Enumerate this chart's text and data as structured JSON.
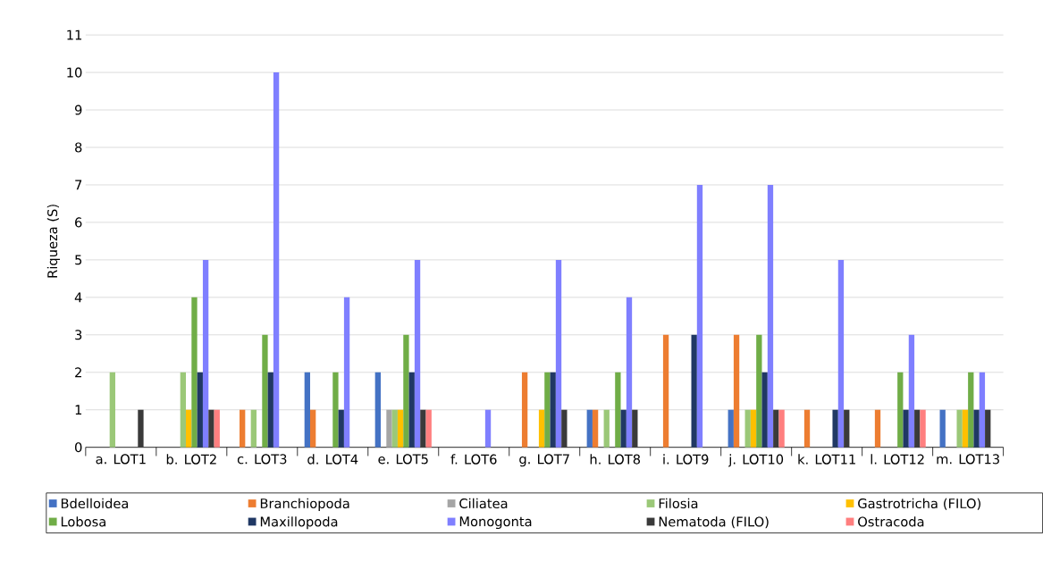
{
  "chart_data": {
    "type": "bar",
    "ylabel": "Riqueza (S)",
    "categories": [
      "a. LOT1",
      "b. LOT2",
      "c. LOT3",
      "d. LOT4",
      "e. LOT5",
      "f. LOT6",
      "g. LOT7",
      "h. LOT8",
      "i. LOT9",
      "j. LOT10",
      "k. LOT11",
      "l. LOT12",
      "m. LOT13"
    ],
    "series": [
      {
        "name": "Bdelloidea",
        "color": "#4472c4",
        "values": [
          0,
          0,
          0,
          2,
          2,
          0,
          0,
          1,
          0,
          1,
          0,
          0,
          1
        ]
      },
      {
        "name": "Branchiopoda",
        "color": "#ed7d31",
        "values": [
          0,
          0,
          1,
          1,
          0,
          0,
          2,
          1,
          3,
          3,
          1,
          1,
          0
        ]
      },
      {
        "name": "Ciliatea",
        "color": "#a5a5a5",
        "values": [
          0,
          0,
          0,
          0,
          1,
          0,
          0,
          0,
          0,
          0,
          0,
          0,
          0
        ]
      },
      {
        "name": "Filosia",
        "color": "#9bc878",
        "values": [
          2,
          2,
          1,
          0,
          1,
          0,
          0,
          1,
          0,
          1,
          0,
          0,
          1
        ]
      },
      {
        "name": "Gastrotricha (FILO)",
        "color": "#ffc000",
        "values": [
          0,
          1,
          0,
          0,
          1,
          0,
          1,
          0,
          0,
          1,
          0,
          0,
          1
        ]
      },
      {
        "name": "Lobosa",
        "color": "#70ad47",
        "values": [
          0,
          4,
          3,
          2,
          3,
          0,
          2,
          2,
          0,
          3,
          0,
          2,
          2
        ]
      },
      {
        "name": "Maxillopoda",
        "color": "#203864",
        "values": [
          0,
          2,
          2,
          1,
          2,
          0,
          2,
          1,
          3,
          2,
          1,
          1,
          1
        ]
      },
      {
        "name": "Monogonta",
        "color": "#7f7fff",
        "values": [
          0,
          5,
          10,
          4,
          5,
          1,
          5,
          4,
          7,
          7,
          5,
          3,
          2
        ]
      },
      {
        "name": "Nematoda (FILO)",
        "color": "#3a3a3a",
        "values": [
          1,
          1,
          0,
          0,
          1,
          0,
          1,
          1,
          0,
          1,
          1,
          1,
          1
        ]
      },
      {
        "name": "Ostracoda",
        "color": "#ff7f7f",
        "values": [
          0,
          1,
          0,
          0,
          1,
          0,
          0,
          0,
          0,
          1,
          0,
          1,
          0
        ]
      }
    ],
    "ylim": [
      0,
      11
    ],
    "yticks": [
      0,
      1,
      2,
      3,
      4,
      5,
      6,
      7,
      8,
      9,
      10,
      11
    ],
    "grid": "y",
    "legend": "bottom"
  }
}
